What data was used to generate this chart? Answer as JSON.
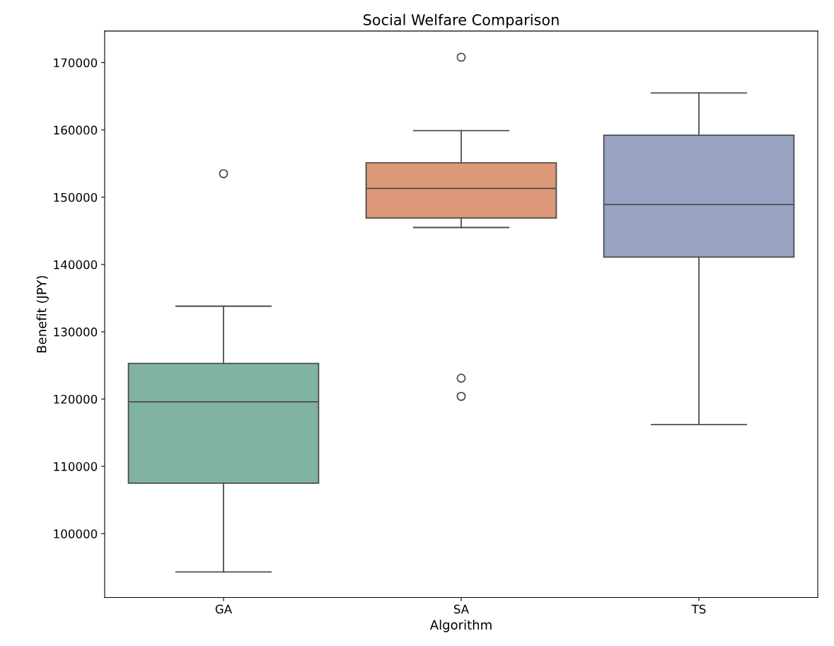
{
  "chart_data": {
    "type": "box",
    "title": "Social Welfare Comparison",
    "xlabel": "Algorithm",
    "ylabel": "Benefit (JPY)",
    "categories": [
      "GA",
      "SA",
      "TS"
    ],
    "colors": [
      "#80b3a2",
      "#dc9878",
      "#97a3c1"
    ],
    "boxes": [
      {
        "low": 94300,
        "q1": 107500,
        "median": 119600,
        "q3": 125300,
        "high": 133800,
        "outliers": [
          153500
        ]
      },
      {
        "low": 145500,
        "q1": 146900,
        "median": 151300,
        "q3": 155100,
        "high": 159900,
        "outliers": [
          170800,
          123100,
          120400
        ]
      },
      {
        "low": 116200,
        "q1": 141100,
        "median": 148900,
        "q3": 159200,
        "high": 165500
      }
    ],
    "ylim": [
      90500,
      174700
    ],
    "yticks": [
      100000,
      110000,
      120000,
      130000,
      140000,
      150000,
      160000,
      170000
    ],
    "grid": false
  }
}
